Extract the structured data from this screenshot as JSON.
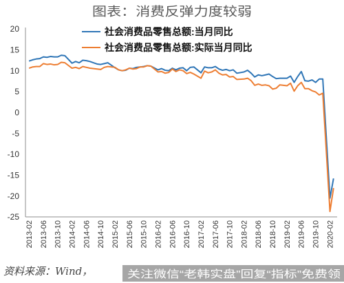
{
  "chart_data": {
    "type": "line",
    "title": "图表：消费反弹力度较弱",
    "x": [
      "2013-02",
      "2013-03",
      "2013-04",
      "2013-05",
      "2013-06",
      "2013-07",
      "2013-08",
      "2013-09",
      "2013-10",
      "2013-11",
      "2013-12",
      "2014-02",
      "2014-03",
      "2014-04",
      "2014-05",
      "2014-06",
      "2014-07",
      "2014-08",
      "2014-09",
      "2014-10",
      "2014-11",
      "2014-12",
      "2015-02",
      "2015-03",
      "2015-04",
      "2015-05",
      "2015-06",
      "2015-07",
      "2015-08",
      "2015-09",
      "2015-10",
      "2015-11",
      "2015-12",
      "2016-02",
      "2016-03",
      "2016-04",
      "2016-05",
      "2016-06",
      "2016-07",
      "2016-08",
      "2016-09",
      "2016-10",
      "2016-11",
      "2016-12",
      "2017-02",
      "2017-03",
      "2017-04",
      "2017-05",
      "2017-06",
      "2017-07",
      "2017-08",
      "2017-09",
      "2017-10",
      "2017-11",
      "2017-12",
      "2018-02",
      "2018-03",
      "2018-04",
      "2018-05",
      "2018-06",
      "2018-07",
      "2018-08",
      "2018-09",
      "2018-10",
      "2018-11",
      "2018-12",
      "2019-02",
      "2019-03",
      "2019-04",
      "2019-05",
      "2019-06",
      "2019-07",
      "2019-08",
      "2019-09",
      "2019-10",
      "2019-11",
      "2019-12",
      "2020-02",
      "2020-03"
    ],
    "series": [
      {
        "name": "社会消费品零售总额:当月同比",
        "color": "#2E75B6",
        "values": [
          12.3,
          12.6,
          12.8,
          12.9,
          13.3,
          13.2,
          13.4,
          13.3,
          13.3,
          13.7,
          13.6,
          11.8,
          12.2,
          11.9,
          12.5,
          12.4,
          12.2,
          11.9,
          11.6,
          11.5,
          11.7,
          11.9,
          10.7,
          10.2,
          10.0,
          10.1,
          10.6,
          10.5,
          10.8,
          10.9,
          11.0,
          11.2,
          11.1,
          10.2,
          10.5,
          10.1,
          10.0,
          10.6,
          10.2,
          10.6,
          10.7,
          10.0,
          10.8,
          10.9,
          9.5,
          10.9,
          10.7,
          10.7,
          11.0,
          10.4,
          10.1,
          10.3,
          10.0,
          10.2,
          9.4,
          9.7,
          10.1,
          9.4,
          8.5,
          9.0,
          8.8,
          9.0,
          9.2,
          8.6,
          8.1,
          8.2,
          8.2,
          8.7,
          7.2,
          8.6,
          9.8,
          7.6,
          7.5,
          7.8,
          7.2,
          8.0,
          8.0,
          -20.5,
          -15.8
        ]
      },
      {
        "name": "社会消费品零售总额:实际当月同比",
        "color": "#ED7D31",
        "values": [
          10.6,
          10.9,
          11.0,
          11.0,
          11.7,
          11.5,
          11.6,
          11.4,
          11.5,
          12.0,
          11.9,
          10.6,
          10.8,
          10.5,
          11.0,
          10.8,
          10.6,
          10.5,
          10.4,
          10.3,
          10.8,
          11.0,
          10.8,
          10.2,
          10.0,
          10.2,
          10.6,
          10.4,
          10.5,
          10.9,
          10.9,
          11.2,
          11.1,
          9.7,
          9.8,
          9.4,
          9.6,
          10.4,
          9.8,
          10.2,
          10.0,
          9.3,
          9.6,
          9.2,
          8.2,
          9.9,
          9.5,
          9.7,
          10.2,
          9.4,
          9.0,
          9.1,
          8.5,
          8.6,
          7.9,
          8.0,
          8.2,
          7.6,
          6.5,
          6.8,
          6.5,
          6.6,
          6.4,
          5.6,
          5.8,
          6.6,
          6.4,
          7.0,
          5.1,
          6.4,
          7.2,
          5.7,
          5.7,
          5.2,
          4.9,
          4.2,
          4.6,
          -23.7,
          -18.1
        ]
      }
    ],
    "x_ticks": [
      "2013-02",
      "2013-06",
      "2013-10",
      "2014-02",
      "2014-06",
      "2014-10",
      "2015-02",
      "2015-06",
      "2015-10",
      "2016-02",
      "2016-06",
      "2016-10",
      "2017-02",
      "2017-06",
      "2017-10",
      "2018-02",
      "2018-06",
      "2018-10",
      "2019-02",
      "2019-06",
      "2019-10",
      "2020-02"
    ],
    "xlim": [
      "2013-01",
      "2020-04"
    ],
    "ylim": [
      -25,
      20
    ],
    "y_ticks": [
      20,
      15,
      10,
      5,
      0,
      -5,
      -10,
      -15,
      -20,
      -25
    ],
    "grid": false,
    "legend": "top-left"
  },
  "footer": {
    "source": "资料来源：Wind，",
    "watermark": "关注微信“老韩实盘”回复“指标”免费领"
  }
}
